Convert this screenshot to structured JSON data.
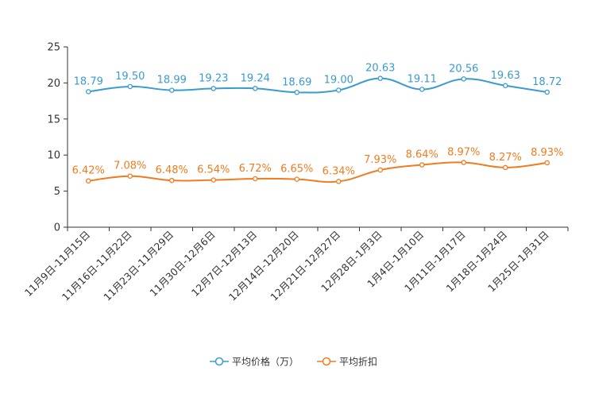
{
  "chart_data": {
    "type": "line",
    "categories": [
      "11月9日-11月15日",
      "11月16日-11月22日",
      "11月23日-11月29日",
      "11月30日-12月6日",
      "12月7日-12月13日",
      "12月14日-12月20日",
      "12月21日-12月27日",
      "12月28日-1月3日",
      "1月4日-1月10日",
      "1月11日-1月17日",
      "1月18日-1月24日",
      "1月25日-1月31日"
    ],
    "ylim": [
      0,
      25
    ],
    "yticks": [
      "0",
      "5",
      "10",
      "15",
      "20",
      "25"
    ],
    "series": [
      {
        "name": "平均价格（万）",
        "color": "#3a9bd0",
        "values": [
          18.79,
          19.5,
          18.99,
          19.23,
          19.24,
          18.69,
          19.0,
          20.63,
          19.11,
          20.56,
          19.63,
          18.72
        ],
        "labels": [
          "18.79",
          "19.50",
          "18.99",
          "19.23",
          "19.24",
          "18.69",
          "19.00",
          "20.63",
          "19.11",
          "20.56",
          "19.63",
          "18.72"
        ]
      },
      {
        "name": "平均折扣",
        "color": "#f07c1f",
        "values": [
          6.42,
          7.08,
          6.48,
          6.54,
          6.72,
          6.65,
          6.34,
          7.93,
          8.64,
          8.97,
          8.27,
          8.93
        ],
        "labels": [
          "6.42%",
          "7.08%",
          "6.48%",
          "6.54%",
          "6.72%",
          "6.65%",
          "6.34%",
          "7.93%",
          "8.64%",
          "8.97%",
          "8.27%",
          "8.93%"
        ]
      }
    ]
  }
}
